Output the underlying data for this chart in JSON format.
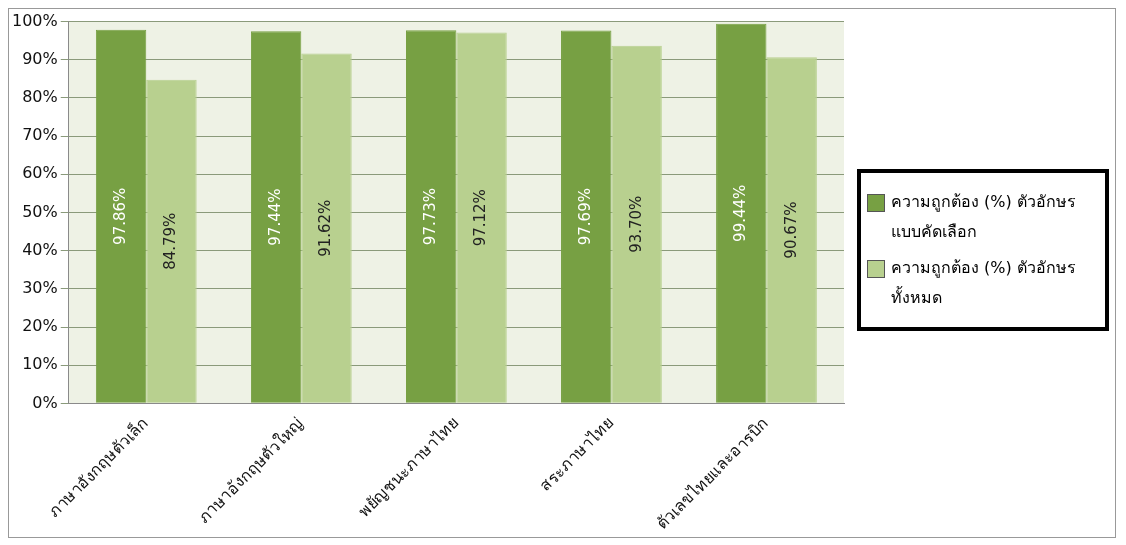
{
  "chart_data": {
    "type": "bar",
    "categories": [
      "ภาษาอังกฤษตัวเล็ก",
      "ภาษาอังกฤษตัวใหญ่",
      "พยัญชนะภาษาไทย",
      "สระภาษาไทย",
      "ตัวเลขไทยและอารบิก"
    ],
    "series": [
      {
        "name": "ความถูกต้อง (%) ตัวอักษรแบบคัดเลือก",
        "color": "#77a043",
        "values": [
          97.86,
          97.44,
          97.73,
          97.69,
          99.44
        ],
        "value_labels": [
          "97.86%",
          "97.44%",
          "97.73%",
          "97.69%",
          "99.44%"
        ]
      },
      {
        "name": "ความถูกต้อง (%) ตัวอักษรทั้งหมด",
        "color": "#b8d08f",
        "values": [
          84.79,
          91.62,
          97.12,
          93.7,
          90.67
        ],
        "value_labels": [
          "84.79%",
          "91.62%",
          "97.12%",
          "93.70%",
          "90.67%"
        ]
      }
    ],
    "ylim": [
      0,
      100
    ],
    "yticks": [
      {
        "value": 0,
        "label": "0%"
      },
      {
        "value": 10,
        "label": "10%"
      },
      {
        "value": 20,
        "label": "20%"
      },
      {
        "value": 30,
        "label": "30%"
      },
      {
        "value": 40,
        "label": "40%"
      },
      {
        "value": 50,
        "label": "50%"
      },
      {
        "value": 60,
        "label": "60%"
      },
      {
        "value": 70,
        "label": "70%"
      },
      {
        "value": 80,
        "label": "80%"
      },
      {
        "value": 90,
        "label": "90%"
      },
      {
        "value": 100,
        "label": "100%"
      }
    ],
    "grid": "y",
    "legend": "right"
  }
}
